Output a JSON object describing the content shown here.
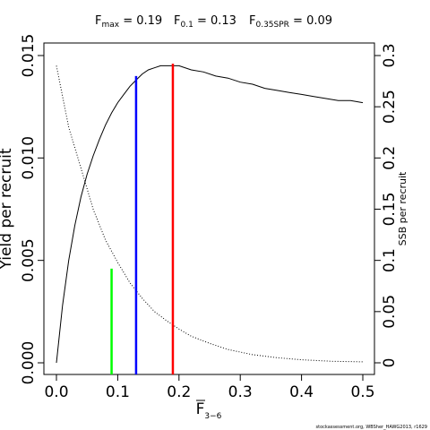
{
  "chart_data": {
    "type": "line",
    "title_items": [
      {
        "symbol": "F",
        "sub": "max",
        "rest": " = 0.19"
      },
      {
        "symbol": "F",
        "sub": "0.1",
        "rest": " = 0.13"
      },
      {
        "symbol": "F",
        "sub": "0.35SPR",
        "rest": " = 0.09"
      }
    ],
    "xlabel": {
      "base": "F",
      "sub": "3−6"
    },
    "ylabel_left": "Yield per recruit",
    "ylabel_right": "SSB per recruit",
    "xlim": [
      0,
      0.5
    ],
    "ylim_left": [
      0,
      0.015
    ],
    "ylim_right": [
      0,
      0.3
    ],
    "x_ticks": [
      "0.0",
      "0.1",
      "0.2",
      "0.3",
      "0.4",
      "0.5"
    ],
    "y_ticks_left": [
      "0.000",
      "0.005",
      "0.010",
      "0.015"
    ],
    "y_ticks_right": [
      "0",
      "0.05",
      "0.1",
      "0.15",
      "0.2",
      "0.25",
      "0.3"
    ],
    "series": [
      {
        "style": "solid",
        "axis": "left",
        "color": "#000000",
        "x": [
          0,
          0.01,
          0.02,
          0.03,
          0.04,
          0.05,
          0.06,
          0.07,
          0.08,
          0.09,
          0.1,
          0.11,
          0.12,
          0.13,
          0.14,
          0.15,
          0.16,
          0.17,
          0.18,
          0.19,
          0.2,
          0.22,
          0.24,
          0.26,
          0.28,
          0.3,
          0.32,
          0.34,
          0.36,
          0.38,
          0.4,
          0.42,
          0.44,
          0.46,
          0.48,
          0.5
        ],
        "y": [
          0,
          0.0028,
          0.005,
          0.0067,
          0.0081,
          0.0092,
          0.0101,
          0.0109,
          0.0116,
          0.0122,
          0.0127,
          0.0131,
          0.0135,
          0.0138,
          0.0141,
          0.0143,
          0.0144,
          0.0145,
          0.0145,
          0.0145,
          0.0145,
          0.0143,
          0.0142,
          0.014,
          0.0139,
          0.0137,
          0.0136,
          0.0134,
          0.0133,
          0.0132,
          0.0131,
          0.013,
          0.0129,
          0.0128,
          0.0128,
          0.0127
        ]
      },
      {
        "style": "dotted",
        "axis": "right",
        "color": "#000000",
        "x": [
          0,
          0.02,
          0.04,
          0.06,
          0.08,
          0.1,
          0.12,
          0.14,
          0.16,
          0.18,
          0.2,
          0.22,
          0.25,
          0.28,
          0.32,
          0.36,
          0.4,
          0.45,
          0.5
        ],
        "y": [
          0.29,
          0.23,
          0.19,
          0.15,
          0.12,
          0.098,
          0.078,
          0.063,
          0.05,
          0.041,
          0.033,
          0.026,
          0.019,
          0.013,
          0.008,
          0.005,
          0.003,
          0.0015,
          0.001
        ]
      }
    ],
    "reference_lines": [
      {
        "x": 0.09,
        "y_top": 0.0046,
        "color": "#00ff00"
      },
      {
        "x": 0.13,
        "y_top": 0.014,
        "color": "#0000ff"
      },
      {
        "x": 0.19,
        "y_top": 0.0146,
        "color": "#ff0000"
      }
    ],
    "credit": "stockassessment.org, WBSher_HAWG2013, r1629",
    "grid": false
  }
}
